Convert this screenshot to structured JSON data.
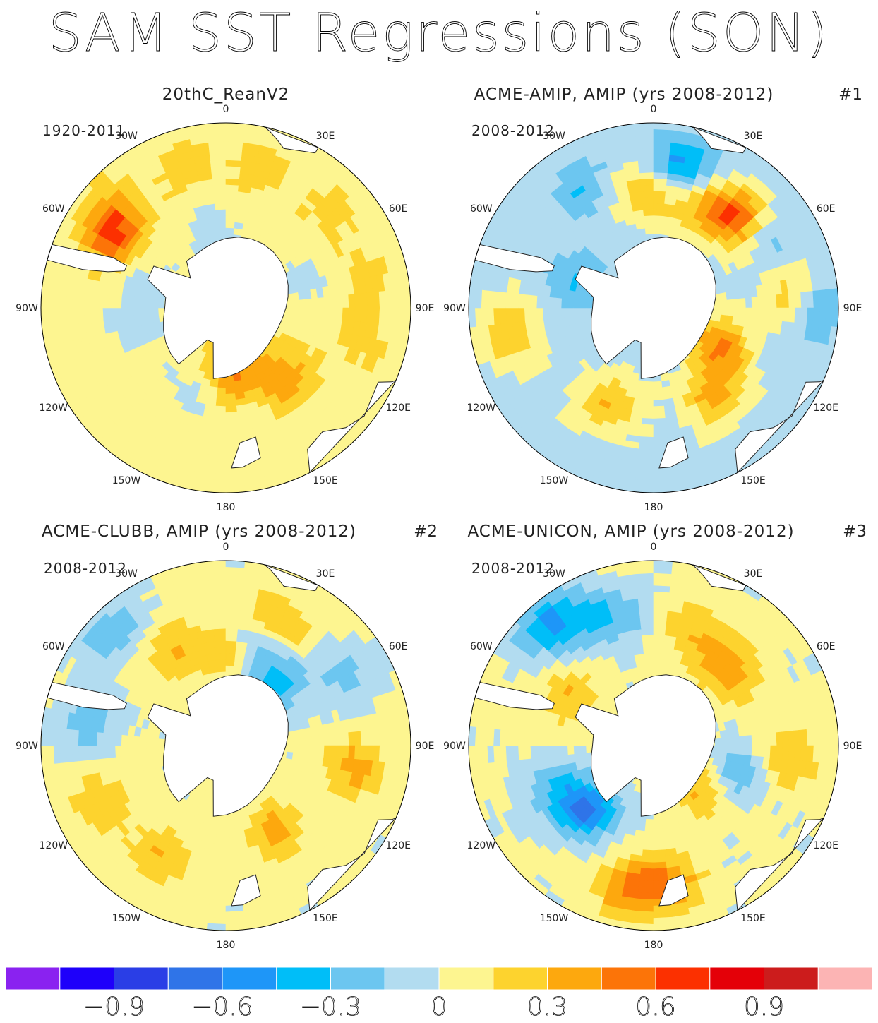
{
  "figure": {
    "title": "SAM SST Regressions (SON)"
  },
  "panels": [
    {
      "title": "20thC_ReanV2",
      "period": "1920-2011",
      "number": ""
    },
    {
      "title": "ACME-AMIP, AMIP (yrs 2008-2012)",
      "period": "2008-2012",
      "number": "#1"
    },
    {
      "title": "ACME-CLUBB, AMIP (yrs 2008-2012)",
      "period": "2008-2012",
      "number": "#2"
    },
    {
      "title": "ACME-UNICON, AMIP (yrs 2008-2012)",
      "period": "2008-2012",
      "number": "#3"
    }
  ],
  "longitude_labels": [
    "0",
    "30E",
    "60E",
    "90E",
    "120E",
    "150E",
    "180",
    "150W",
    "120W",
    "90W",
    "60W",
    "30W"
  ],
  "colorbar": {
    "colors": [
      "#8a22f0",
      "#1e00fa",
      "#2a3ee6",
      "#2f74e8",
      "#1e96f8",
      "#00bef8",
      "#6cc6f0",
      "#b2dcf0",
      "#fdf590",
      "#fdd32e",
      "#fda80e",
      "#fc7408",
      "#fc3000",
      "#e40008",
      "#cc1c1c",
      "#fcb4b4"
    ],
    "tick_labels": [
      "-0.9",
      "-0.6",
      "-0.3",
      "0",
      "0.3",
      "0.6",
      "0.9"
    ]
  },
  "chart_data": {
    "type": "heatmap",
    "title": "SAM SST Regressions (SON)",
    "projection": "south polar stereographic",
    "contour_levels": [
      -1.05,
      -0.9,
      -0.75,
      -0.6,
      -0.45,
      -0.3,
      -0.15,
      0,
      0.15,
      0.3,
      0.45,
      0.6,
      0.75,
      0.9,
      1.05
    ],
    "colorbar_ticks": [
      -0.9,
      -0.6,
      -0.3,
      0,
      0.3,
      0.6,
      0.9
    ],
    "panels": [
      {
        "name": "20thC_ReanV2",
        "period": "1920-2011",
        "background_value": 0.07,
        "anomalies": [
          {
            "lon": -15,
            "lat": -42,
            "value": 0.22
          },
          {
            "lon": 15,
            "lat": -43,
            "value": 0.22
          },
          {
            "lon": 50,
            "lat": -45,
            "value": 0.2
          },
          {
            "lon": 80,
            "lat": -45,
            "value": 0.2
          },
          {
            "lon": 105,
            "lat": -45,
            "value": 0.2
          },
          {
            "lon": -50,
            "lat": -42,
            "value": 0.3
          },
          {
            "lon": -58,
            "lat": -47,
            "value": 0.52
          },
          {
            "lon": 140,
            "lat": -60,
            "value": 0.4
          },
          {
            "lon": 175,
            "lat": -68,
            "value": 0.45
          },
          {
            "lon": -100,
            "lat": -60,
            "value": -0.07
          },
          {
            "lon": -70,
            "lat": -60,
            "value": -0.06
          },
          {
            "lon": -10,
            "lat": -65,
            "value": -0.06
          },
          {
            "lon": 70,
            "lat": -62,
            "value": -0.06
          },
          {
            "lon": -160,
            "lat": -62,
            "value": -0.06
          }
        ]
      },
      {
        "name": "ACME-AMIP, AMIP (yrs 2008-2012)",
        "period": "2008-2012",
        "background_value": -0.05,
        "anomalies": [
          {
            "lon": -100,
            "lat": -42,
            "value": 0.3
          },
          {
            "lon": -5,
            "lat": -52,
            "value": 0.32
          },
          {
            "lon": 25,
            "lat": -52,
            "value": 0.32
          },
          {
            "lon": 45,
            "lat": -50,
            "value": 0.7
          },
          {
            "lon": 12,
            "lat": -43,
            "value": -0.55
          },
          {
            "lon": 55,
            "lat": -48,
            "value": -0.4
          },
          {
            "lon": -155,
            "lat": -55,
            "value": 0.3
          },
          {
            "lon": 145,
            "lat": -55,
            "value": 0.35
          },
          {
            "lon": 120,
            "lat": -65,
            "value": 0.45
          },
          {
            "lon": 85,
            "lat": -45,
            "value": 0.3
          },
          {
            "lon": -30,
            "lat": -45,
            "value": -0.3
          },
          {
            "lon": -70,
            "lat": -62,
            "value": -0.3
          },
          {
            "lon": 90,
            "lat": -38,
            "value": -0.35
          }
        ]
      },
      {
        "name": "ACME-CLUBB, AMIP (yrs 2008-2012)",
        "period": "2008-2012",
        "background_value": 0.03,
        "anomalies": [
          {
            "lon": -30,
            "lat": -53,
            "value": 0.3
          },
          {
            "lon": 0,
            "lat": -58,
            "value": 0.35
          },
          {
            "lon": 15,
            "lat": -53,
            "value": -0.5
          },
          {
            "lon": 20,
            "lat": -48,
            "value": 0.55
          },
          {
            "lon": 40,
            "lat": -63,
            "value": -0.35
          },
          {
            "lon": -115,
            "lat": -45,
            "value": 0.3
          },
          {
            "lon": -150,
            "lat": -48,
            "value": 0.3
          },
          {
            "lon": 100,
            "lat": -48,
            "value": 0.35
          },
          {
            "lon": 150,
            "lat": -58,
            "value": 0.35
          },
          {
            "lon": -45,
            "lat": -38,
            "value": -0.28
          },
          {
            "lon": -80,
            "lat": -45,
            "value": -0.25
          },
          {
            "lon": 60,
            "lat": -45,
            "value": -0.2
          }
        ]
      },
      {
        "name": "ACME-UNICON, AMIP (yrs 2008-2012)",
        "period": "2008-2012",
        "background_value": 0.02,
        "anomalies": [
          {
            "lon": -40,
            "lat": -38,
            "value": -0.5
          },
          {
            "lon": -20,
            "lat": -45,
            "value": -0.35
          },
          {
            "lon": -135,
            "lat": -60,
            "value": -0.55
          },
          {
            "lon": -115,
            "lat": -55,
            "value": -0.3
          },
          {
            "lon": 110,
            "lat": -62,
            "value": -0.35
          },
          {
            "lon": -170,
            "lat": -42,
            "value": 0.4
          },
          {
            "lon": 175,
            "lat": -45,
            "value": 0.45
          },
          {
            "lon": 45,
            "lat": -55,
            "value": 0.4
          },
          {
            "lon": 20,
            "lat": -50,
            "value": 0.3
          },
          {
            "lon": 95,
            "lat": -45,
            "value": 0.3
          },
          {
            "lon": -60,
            "lat": -58,
            "value": 0.3
          },
          {
            "lon": 130,
            "lat": -68,
            "value": 0.4
          }
        ]
      }
    ]
  }
}
